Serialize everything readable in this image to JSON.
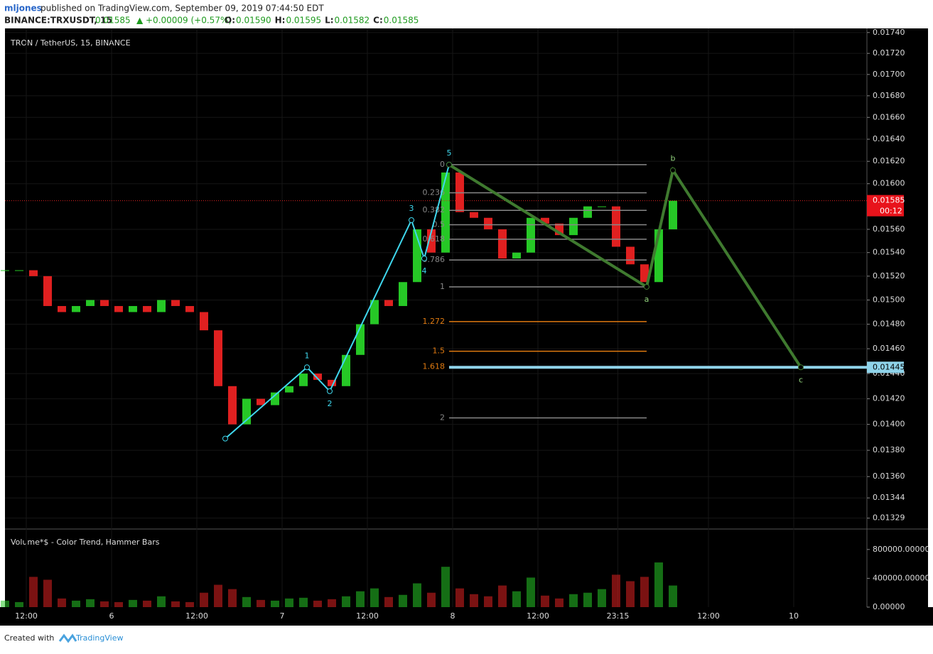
{
  "header": {
    "author": "mljones",
    "published": "published on TradingView.com, September 09, 2019 07:44:50 EDT",
    "symbol": "BINANCE:TRXUSDT, 15",
    "last": "0.01585",
    "change": "+0.00009 (+0.57%)",
    "ohlc": [
      {
        "key": "O:",
        "value": "0.01590"
      },
      {
        "key": "H:",
        "value": "0.01595"
      },
      {
        "key": "L:",
        "value": "0.01582"
      },
      {
        "key": "C:",
        "value": "0.01585"
      }
    ]
  },
  "footer": {
    "created": "Created with",
    "brand": "TradingView"
  },
  "chart_data": [
    {
      "type": "candlestick",
      "title": "TRON / TetherUS, 15, BINANCE",
      "x": [
        9,
        11,
        13,
        15,
        17,
        19,
        21,
        23,
        25,
        27,
        29,
        31,
        33,
        35,
        37,
        39,
        41,
        43,
        45,
        47,
        49,
        51,
        53,
        55,
        57,
        59,
        61,
        63,
        65,
        67,
        69,
        71,
        73,
        75,
        77,
        79,
        81,
        83,
        85,
        87,
        89,
        91,
        93,
        95,
        97,
        99,
        101,
        103
      ],
      "values": [
        0.01525,
        0.01525,
        0.0152,
        0.01495,
        0.0149,
        0.01495,
        0.015,
        0.01495,
        0.0149,
        0.01495,
        0.0149,
        0.015,
        0.01495,
        0.0149,
        0.01475,
        0.0143,
        0.014,
        0.0142,
        0.01415,
        0.01425,
        0.0143,
        0.0144,
        0.01435,
        0.0143,
        0.01455,
        0.0148,
        0.015,
        0.01495,
        0.01515,
        0.0156,
        0.0154,
        0.0161,
        0.01575,
        0.0157,
        0.0156,
        0.01535,
        0.0154,
        0.0157,
        0.01565,
        0.01555,
        0.0157,
        0.0158,
        0.0158,
        0.01545,
        0.0153,
        0.01515,
        0.0156,
        0.01585
      ],
      "up_color": "#26c826",
      "down_color": "#e02020",
      "log": true,
      "grid": true,
      "xlim": [
        9,
        130.3
      ],
      "xticks": [
        {
          "value": 12,
          "label": "12:00"
        },
        {
          "value": 24,
          "label": "6"
        },
        {
          "value": 36,
          "label": "12:00"
        },
        {
          "value": 48,
          "label": "7"
        },
        {
          "value": 60,
          "label": "12:00"
        },
        {
          "value": 72,
          "label": "8"
        },
        {
          "value": 84,
          "label": "12:00"
        },
        {
          "value": 95.25,
          "label": "23:15"
        },
        {
          "value": 108,
          "label": "12:00"
        },
        {
          "value": 120,
          "label": "10"
        }
      ],
      "ylim": [
        0.01321,
        0.01744
      ],
      "yticks": [
        {
          "value": 0.0174,
          "label": "0.01740"
        },
        {
          "value": 0.0172,
          "label": "0.01720"
        },
        {
          "value": 0.017,
          "label": "0.01700"
        },
        {
          "value": 0.0168,
          "label": "0.01680"
        },
        {
          "value": 0.0166,
          "label": "0.01660"
        },
        {
          "value": 0.0164,
          "label": "0.01640"
        },
        {
          "value": 0.0162,
          "label": "0.01620"
        },
        {
          "value": 0.016,
          "label": "0.01600"
        },
        {
          "value": 0.0156,
          "label": "0.01560"
        },
        {
          "value": 0.0154,
          "label": "0.01540"
        },
        {
          "value": 0.0152,
          "label": "0.01520"
        },
        {
          "value": 0.015,
          "label": "0.01500"
        },
        {
          "value": 0.0148,
          "label": "0.01480"
        },
        {
          "value": 0.0146,
          "label": "0.01460"
        },
        {
          "value": 0.0144,
          "label": "0.01440"
        },
        {
          "value": 0.0142,
          "label": "0.01420"
        },
        {
          "value": 0.014,
          "label": "0.01400"
        },
        {
          "value": 0.0138,
          "label": "0.01380"
        },
        {
          "value": 0.0136,
          "label": "0.01360"
        },
        0.01344,
        0.01329
      ],
      "last_price": 0.01585,
      "countdown": "00:12",
      "target": {
        "value": 0.01445,
        "color": "#8fd3ea"
      },
      "fib": {
        "x": [
          71.5,
          99.3
        ],
        "from": 0.01617,
        "to": 0.01511,
        "levels": [
          0,
          0.236,
          0.382,
          0.5,
          0.618,
          0.786,
          1,
          1.272,
          1.5,
          1.618,
          2
        ],
        "colors": [
          "#888888",
          "#888888",
          "#888888",
          "#888888",
          "#888888",
          "#888888",
          "#888888",
          "#e07a10",
          "#e07a10",
          "#e07a10",
          "#888888"
        ]
      },
      "waves": [
        {
          "color": "#3fd8ee",
          "x": [
            40,
            51.5,
            54.7,
            66.2,
            68,
            71.5
          ],
          "y": [
            0.01389,
            0.01445,
            0.01426,
            0.01568,
            0.01535,
            0.01617
          ],
          "labels": [
            null,
            "1",
            "2",
            "3",
            "4",
            "5"
          ]
        },
        {
          "color": "#3f7a2f",
          "x": [
            71.5,
            99.3,
            103,
            121
          ],
          "y": [
            0.01617,
            0.01511,
            0.01612,
            0.01445
          ],
          "labels": [
            null,
            "a",
            "b",
            "c"
          ]
        }
      ]
    },
    {
      "type": "bar",
      "title": "Volume*$ - Color Trend, Hammer Bars",
      "values": [
        90000,
        70000,
        420000,
        380000,
        120000,
        90000,
        110000,
        80000,
        70000,
        100000,
        90000,
        150000,
        80000,
        70000,
        200000,
        310000,
        250000,
        140000,
        100000,
        90000,
        120000,
        130000,
        90000,
        110000,
        150000,
        220000,
        260000,
        140000,
        170000,
        330000,
        200000,
        560000,
        260000,
        180000,
        150000,
        300000,
        220000,
        410000,
        160000,
        120000,
        180000,
        200000,
        250000,
        450000,
        360000,
        420000,
        620000,
        300000
      ],
      "ylim": [
        0,
        1084000
      ],
      "yticks": [
        {
          "value": 0,
          "label": "0.00000"
        },
        {
          "value": 400000,
          "label": "400000.00000"
        },
        {
          "value": 800000,
          "label": "800000.00000"
        }
      ]
    }
  ]
}
